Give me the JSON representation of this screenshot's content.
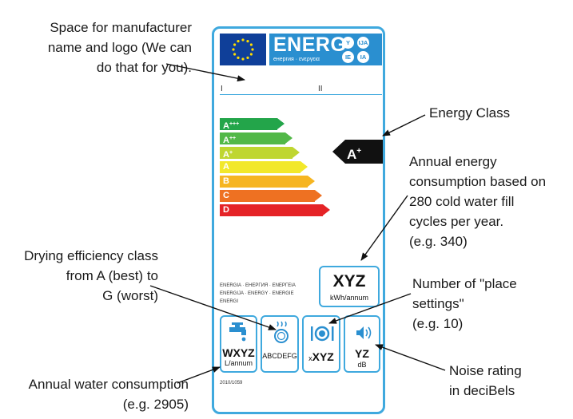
{
  "annotations": {
    "manufacturer": [
      "Space for manufacturer",
      "name and logo (We can",
      "do that for you)."
    ],
    "energy_class": [
      "Energy Class"
    ],
    "annual_energy": [
      "Annual energy",
      "consumption based on",
      "280 cold water fill",
      "cycles per year.",
      "(e.g. 340)"
    ],
    "drying": [
      "Drying efficiency class",
      "from A (best) to",
      "G (worst)"
    ],
    "place_settings": [
      "Number of \"place",
      "settings\"",
      "(e.g. 10)"
    ],
    "noise": [
      "Noise rating",
      "in deciBels"
    ],
    "water": [
      "Annual water consumption",
      "(e.g. 2905)"
    ]
  },
  "label": {
    "header": {
      "brand": "ENERG",
      "subtitle": "енергия · ενεργεια",
      "circles": [
        "Y",
        "IJA",
        "IE",
        "IA"
      ]
    },
    "roman": [
      "I",
      "II"
    ],
    "classes": [
      {
        "letter": "A",
        "plus": "+++",
        "color": "#23a54a"
      },
      {
        "letter": "A",
        "plus": "++",
        "color": "#52b848"
      },
      {
        "letter": "A",
        "plus": "+",
        "color": "#bfd630"
      },
      {
        "letter": "A",
        "plus": "",
        "color": "#f2e82a"
      },
      {
        "letter": "B",
        "plus": "",
        "color": "#f6b521"
      },
      {
        "letter": "C",
        "plus": "",
        "color": "#ee7122"
      },
      {
        "letter": "D",
        "plus": "",
        "color": "#e52327"
      }
    ],
    "current_class": {
      "letter": "A",
      "plus": "+"
    },
    "multilang": [
      "ENERGIA · ЕНЕРГИЯ · ΕΝΕΡΓΕΙΑ",
      "ENERGIJA · ENERGY · ENERGIE",
      "ENERGI"
    ],
    "energy": {
      "value": "XYZ",
      "unit": "kWh/annum"
    },
    "water": {
      "value": "WXYZ",
      "unit": "L/annum",
      "icon": "water-tap-icon"
    },
    "drying": {
      "value": "ABCDEFG",
      "icon": "drying-plate-icon"
    },
    "place_settings": {
      "value": "XYZ",
      "prefix": "x",
      "icon": "place-setting-icon"
    },
    "noise": {
      "value": "YZ",
      "unit": "dB",
      "icon": "speaker-icon"
    },
    "regulation": "2010/1059"
  },
  "colors": {
    "label_border": "#3fa9de",
    "eu_blue": "#0f3f99",
    "energ_blue": "#2a8fd0",
    "icon_blue": "#2a8fd0"
  }
}
